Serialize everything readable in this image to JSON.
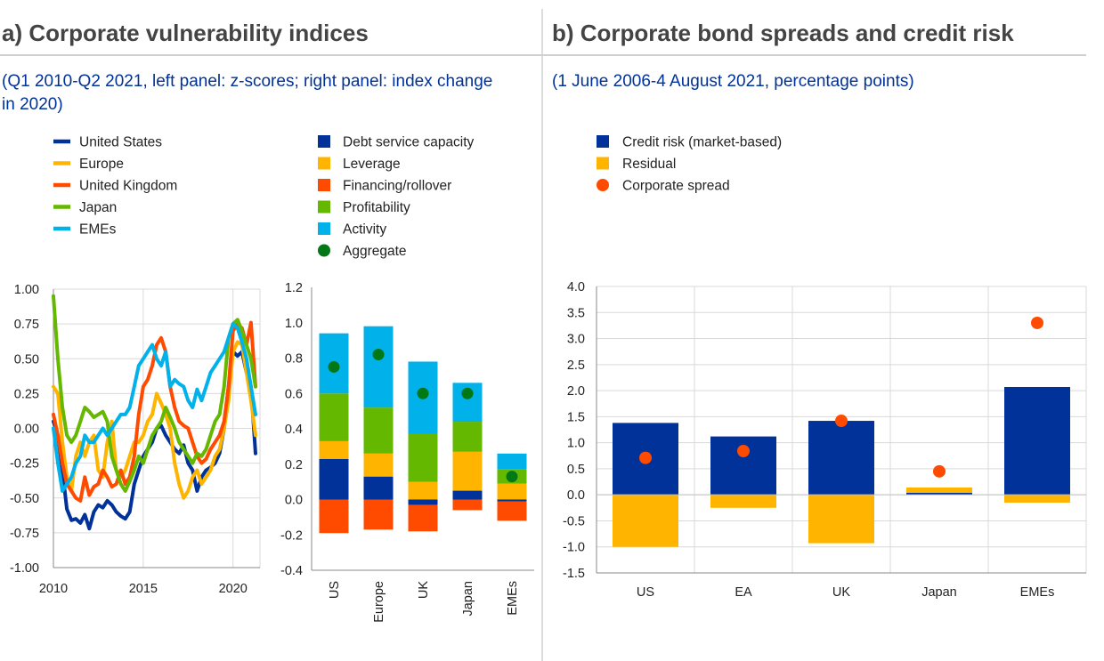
{
  "panel_a": {
    "title": "a) Corporate vulnerability indices",
    "subtitle_lines": [
      "(Q1 2010-Q2 2021, left panel: z-scores; right panel: index change",
      "in 2020)"
    ]
  },
  "panel_b": {
    "title": "b) Corporate bond spreads and credit risk",
    "subtitle": "(1 June 2006-4 August 2021, percentage points)"
  },
  "colors": {
    "dark_blue": "#003299",
    "yellow": "#FFB400",
    "orange": "#FF4B00",
    "green": "#65B800",
    "light_blue": "#00B1EA",
    "dark_green": "#007816",
    "grid": "#D9D9D9",
    "axis": "#888888"
  },
  "chart_data": [
    {
      "id": "line",
      "type": "line",
      "title": "",
      "xlabel": "",
      "ylabel": "",
      "xlim": [
        2010,
        2021.5
      ],
      "ylim": [
        -1.0,
        1.0
      ],
      "y_ticks": [
        "1.00",
        "0.75",
        "0.50",
        "0.25",
        "0.00",
        "-0.25",
        "-0.50",
        "-0.75",
        "-1.00"
      ],
      "x_ticks": [
        "2010",
        "2015",
        "2020"
      ],
      "grid": true,
      "legend_position": "top-left",
      "series": [
        {
          "name": "United States",
          "color": "#003299",
          "x": [
            2010,
            2010.25,
            2010.5,
            2010.75,
            2011,
            2011.25,
            2011.5,
            2011.75,
            2012,
            2012.25,
            2012.5,
            2012.75,
            2013,
            2013.25,
            2013.5,
            2013.75,
            2014,
            2014.25,
            2014.5,
            2014.75,
            2015,
            2015.25,
            2015.5,
            2015.75,
            2016,
            2016.25,
            2016.5,
            2016.75,
            2017,
            2017.25,
            2017.5,
            2017.75,
            2018,
            2018.25,
            2018.5,
            2018.75,
            2019,
            2019.25,
            2019.5,
            2019.75,
            2020,
            2020.25,
            2020.5,
            2020.75,
            2021,
            2021.25
          ],
          "y": [
            0.05,
            -0.05,
            -0.3,
            -0.58,
            -0.66,
            -0.65,
            -0.68,
            -0.62,
            -0.72,
            -0.6,
            -0.55,
            -0.57,
            -0.52,
            -0.55,
            -0.6,
            -0.63,
            -0.65,
            -0.6,
            -0.4,
            -0.3,
            -0.2,
            -0.15,
            -0.1,
            0.0,
            0.02,
            -0.05,
            -0.1,
            -0.15,
            -0.18,
            -0.12,
            -0.25,
            -0.3,
            -0.45,
            -0.35,
            -0.3,
            -0.28,
            -0.25,
            -0.18,
            0.0,
            0.3,
            0.55,
            0.52,
            0.55,
            0.4,
            0.3,
            -0.18
          ]
        },
        {
          "name": "Europe",
          "color": "#FFB400",
          "x": [
            2010,
            2010.25,
            2010.5,
            2010.75,
            2011,
            2011.25,
            2011.5,
            2011.75,
            2012,
            2012.25,
            2012.5,
            2012.75,
            2013,
            2013.25,
            2013.5,
            2013.75,
            2014,
            2014.25,
            2014.5,
            2014.75,
            2015,
            2015.25,
            2015.5,
            2015.75,
            2016,
            2016.25,
            2016.5,
            2016.75,
            2017,
            2017.25,
            2017.5,
            2017.75,
            2018,
            2018.25,
            2018.5,
            2018.75,
            2019,
            2019.25,
            2019.5,
            2019.75,
            2020,
            2020.25,
            2020.5,
            2020.75,
            2021,
            2021.25
          ],
          "y": [
            0.3,
            0.25,
            -0.1,
            -0.35,
            -0.45,
            -0.2,
            -0.1,
            -0.2,
            -0.1,
            -0.05,
            -0.3,
            -0.35,
            -0.1,
            0.05,
            -0.3,
            -0.35,
            -0.3,
            -0.2,
            -0.1,
            -0.1,
            -0.05,
            0.05,
            0.1,
            0.25,
            0.18,
            0.1,
            0.0,
            -0.25,
            -0.4,
            -0.5,
            -0.45,
            -0.35,
            -0.3,
            -0.4,
            -0.35,
            -0.3,
            -0.2,
            -0.15,
            0.0,
            0.2,
            0.55,
            0.62,
            0.6,
            0.4,
            0.2,
            -0.05
          ]
        },
        {
          "name": "United Kingdom",
          "color": "#FF4B00",
          "x": [
            2010,
            2010.25,
            2010.5,
            2010.75,
            2011,
            2011.25,
            2011.5,
            2011.75,
            2012,
            2012.25,
            2012.5,
            2012.75,
            2013,
            2013.25,
            2013.5,
            2013.75,
            2014,
            2014.25,
            2014.5,
            2014.75,
            2015,
            2015.25,
            2015.5,
            2015.75,
            2016,
            2016.25,
            2016.5,
            2016.75,
            2017,
            2017.25,
            2017.5,
            2017.75,
            2018,
            2018.25,
            2018.5,
            2018.75,
            2019,
            2019.25,
            2019.5,
            2019.75,
            2020,
            2020.25,
            2020.5,
            2020.75,
            2021,
            2021.25
          ],
          "y": [
            0.1,
            -0.05,
            -0.25,
            -0.4,
            -0.45,
            -0.5,
            -0.52,
            -0.35,
            -0.48,
            -0.42,
            -0.4,
            -0.3,
            -0.35,
            -0.42,
            -0.4,
            -0.3,
            -0.4,
            -0.35,
            -0.2,
            0.1,
            0.3,
            0.35,
            0.45,
            0.6,
            0.65,
            0.55,
            0.3,
            0.15,
            0.05,
            0.02,
            0.0,
            -0.1,
            -0.2,
            -0.25,
            -0.22,
            -0.15,
            -0.1,
            -0.05,
            0.05,
            0.3,
            0.7,
            0.75,
            0.72,
            0.6,
            0.76,
            0.3
          ]
        },
        {
          "name": "Japan",
          "color": "#65B800",
          "x": [
            2010,
            2010.25,
            2010.5,
            2010.75,
            2011,
            2011.25,
            2011.5,
            2011.75,
            2012,
            2012.25,
            2012.5,
            2012.75,
            2013,
            2013.25,
            2013.5,
            2013.75,
            2014,
            2014.25,
            2014.5,
            2014.75,
            2015,
            2015.25,
            2015.5,
            2015.75,
            2016,
            2016.25,
            2016.5,
            2016.75,
            2017,
            2017.25,
            2017.5,
            2017.75,
            2018,
            2018.25,
            2018.5,
            2018.75,
            2019,
            2019.25,
            2019.5,
            2019.75,
            2020,
            2020.25,
            2020.5,
            2020.75,
            2021,
            2021.25
          ],
          "y": [
            0.95,
            0.5,
            0.15,
            -0.05,
            -0.1,
            -0.05,
            0.05,
            0.15,
            0.12,
            0.08,
            0.1,
            0.12,
            0.05,
            -0.2,
            -0.3,
            -0.4,
            -0.45,
            -0.38,
            -0.3,
            -0.2,
            -0.25,
            -0.15,
            -0.05,
            0.0,
            0.05,
            0.15,
            0.08,
            0.0,
            -0.1,
            -0.15,
            -0.2,
            -0.25,
            -0.18,
            -0.2,
            -0.15,
            -0.05,
            0.05,
            0.1,
            0.3,
            0.65,
            0.75,
            0.78,
            0.7,
            0.6,
            0.5,
            0.3
          ]
        },
        {
          "name": "EMEs",
          "color": "#00B1EA",
          "x": [
            2010,
            2010.25,
            2010.5,
            2010.75,
            2011,
            2011.25,
            2011.5,
            2011.75,
            2012,
            2012.25,
            2012.5,
            2012.75,
            2013,
            2013.25,
            2013.5,
            2013.75,
            2014,
            2014.25,
            2014.5,
            2014.75,
            2015,
            2015.25,
            2015.5,
            2015.75,
            2016,
            2016.25,
            2016.5,
            2016.75,
            2017,
            2017.25,
            2017.5,
            2017.75,
            2018,
            2018.25,
            2018.5,
            2018.75,
            2019,
            2019.25,
            2019.5,
            2019.75,
            2020,
            2020.25,
            2020.5,
            2020.75,
            2021,
            2021.25
          ],
          "y": [
            0.0,
            -0.25,
            -0.45,
            -0.4,
            -0.35,
            -0.25,
            -0.2,
            -0.05,
            -0.1,
            -0.1,
            -0.05,
            0.0,
            -0.05,
            0.0,
            0.05,
            0.1,
            0.1,
            0.15,
            0.3,
            0.45,
            0.5,
            0.55,
            0.6,
            0.5,
            0.45,
            0.55,
            0.3,
            0.35,
            0.32,
            0.3,
            0.2,
            0.15,
            0.28,
            0.2,
            0.3,
            0.4,
            0.45,
            0.5,
            0.55,
            0.65,
            0.75,
            0.72,
            0.62,
            0.5,
            0.3,
            0.1
          ]
        }
      ]
    },
    {
      "id": "stacked",
      "type": "bar",
      "title": "",
      "xlabel": "",
      "ylabel": "",
      "ylim": [
        -0.4,
        1.2
      ],
      "y_ticks": [
        "1.2",
        "1.0",
        "0.8",
        "0.6",
        "0.4",
        "0.2",
        "0.0",
        "-0.2",
        "-0.4"
      ],
      "categories": [
        "US",
        "Europe",
        "UK",
        "Japan",
        "EMEs"
      ],
      "grid": false,
      "legend_position": "top-right",
      "series": [
        {
          "name": "Debt service capacity",
          "color": "#003299",
          "values": [
            0.23,
            0.13,
            -0.03,
            0.05,
            -0.01
          ]
        },
        {
          "name": "Leverage",
          "color": "#FFB400",
          "values": [
            0.1,
            0.13,
            0.1,
            0.22,
            0.09
          ]
        },
        {
          "name": "Financing/rollover",
          "color": "#FF4B00",
          "values": [
            -0.19,
            -0.17,
            -0.15,
            -0.06,
            -0.11
          ]
        },
        {
          "name": "Profitability",
          "color": "#65B800",
          "values": [
            0.27,
            0.26,
            0.27,
            0.17,
            0.08
          ]
        },
        {
          "name": "Activity",
          "color": "#00B1EA",
          "values": [
            0.34,
            0.46,
            0.41,
            0.22,
            0.09
          ]
        }
      ],
      "aggregate": {
        "name": "Aggregate",
        "color": "#007816",
        "values": [
          0.75,
          0.82,
          0.6,
          0.6,
          0.13
        ]
      }
    },
    {
      "id": "spreads",
      "type": "bar",
      "title": "",
      "xlabel": "",
      "ylabel": "",
      "ylim": [
        -1.5,
        4.0
      ],
      "y_ticks": [
        "4.0",
        "3.5",
        "3.0",
        "2.5",
        "2.0",
        "1.5",
        "1.0",
        "0.5",
        "0.0",
        "-0.5",
        "-1.0",
        "-1.5"
      ],
      "categories": [
        "US",
        "EA",
        "UK",
        "Japan",
        "EMEs"
      ],
      "grid": true,
      "legend_position": "top-left",
      "series": [
        {
          "name": "Credit risk (market-based)",
          "color": "#003299",
          "values": [
            1.38,
            1.12,
            1.42,
            0.04,
            2.07
          ]
        },
        {
          "name": "Residual",
          "color": "#FFB400",
          "values": [
            -1.0,
            -0.25,
            -0.93,
            0.1,
            -0.15
          ]
        }
      ],
      "spread": {
        "name": "Corporate spread",
        "color": "#FF4B00",
        "values": [
          0.71,
          0.84,
          1.42,
          0.45,
          3.3
        ]
      }
    }
  ]
}
